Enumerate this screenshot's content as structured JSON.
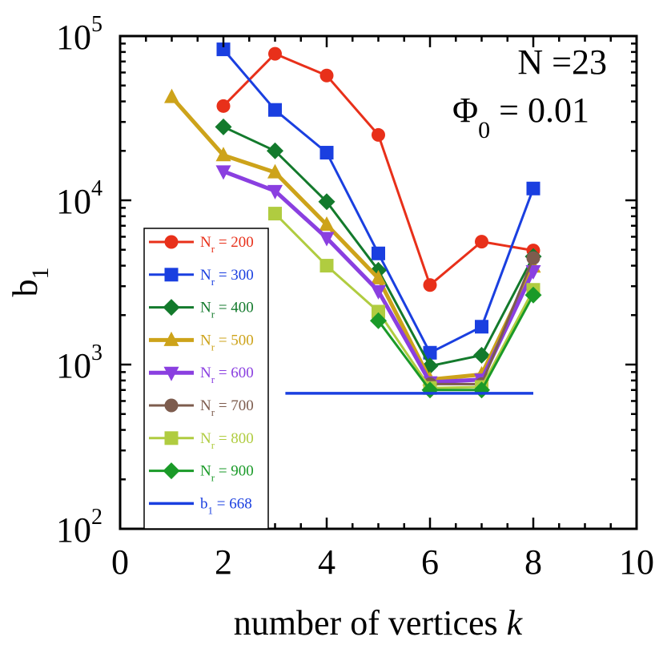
{
  "chart_data": {
    "type": "line",
    "xlabel_main": "number of vertices",
    "xlabel_italic": "k",
    "ylabel_base": "b",
    "ylabel_sub": "1",
    "xlim": [
      0,
      10
    ],
    "ylim": [
      100,
      100000
    ],
    "yscale": "log",
    "xticks": [
      "0",
      "2",
      "4",
      "6",
      "8",
      "10"
    ],
    "yticks": [
      {
        "value": 100,
        "base": "10",
        "exp": "2"
      },
      {
        "value": 1000,
        "base": "10",
        "exp": "3"
      },
      {
        "value": 10000,
        "base": "10",
        "exp": "4"
      },
      {
        "value": 100000,
        "base": "10",
        "exp": "5"
      }
    ],
    "annotations": [
      {
        "id": "N",
        "text": "N =23"
      },
      {
        "id": "phi",
        "base": "Φ",
        "sub": "0",
        "rest": " = 0.01"
      }
    ],
    "legend_placement": "left",
    "series": [
      {
        "name": "N_r = 200",
        "legend_base": "N",
        "legend_sub": "r",
        "legend_rest": " = 200",
        "color": "#e8301a",
        "marker": "circle",
        "width": 3,
        "x": [
          2,
          3,
          4,
          5,
          6,
          7,
          8
        ],
        "y": [
          37500,
          78000,
          57500,
          25000,
          3050,
          5600,
          4950
        ]
      },
      {
        "name": "N_r = 300",
        "legend_base": "N",
        "legend_sub": "r",
        "legend_rest": " = 300",
        "color": "#1a3fe0",
        "marker": "square",
        "width": 3,
        "x": [
          2,
          3,
          4,
          5,
          6,
          7,
          8
        ],
        "y": [
          83000,
          35500,
          19500,
          4750,
          1180,
          1700,
          11800
        ]
      },
      {
        "name": "N_r = 400",
        "legend_base": "N",
        "legend_sub": "r",
        "legend_rest": " = 400",
        "color": "#137a2c",
        "marker": "diamond",
        "width": 3,
        "x": [
          2,
          3,
          4,
          5,
          6,
          7,
          8
        ],
        "y": [
          28000,
          20000,
          9800,
          3750,
          980,
          1140,
          4550
        ]
      },
      {
        "name": "N_r = 500",
        "legend_base": "N",
        "legend_sub": "r",
        "legend_rest": " = 500",
        "color": "#cda31a",
        "marker": "triangle-up",
        "width": 5,
        "x": [
          1,
          2,
          3,
          4,
          5,
          6,
          7,
          8
        ],
        "y": [
          42500,
          18800,
          14800,
          7100,
          3350,
          810,
          870,
          3950
        ]
      },
      {
        "name": "N_r = 600",
        "legend_base": "N",
        "legend_sub": "r",
        "legend_rest": " = 600",
        "color": "#8a3fe0",
        "marker": "triangle-down",
        "width": 5,
        "x": [
          2,
          3,
          4,
          5,
          6,
          7,
          8
        ],
        "y": [
          15000,
          11400,
          5900,
          2800,
          780,
          810,
          3700
        ]
      },
      {
        "name": "N_r = 700",
        "legend_base": "N",
        "legend_sub": "r",
        "legend_rest": " = 700",
        "color": "#7d5c4e",
        "marker": "circle",
        "width": 3,
        "x": [
          6,
          7,
          8
        ],
        "y": [
          760,
          760,
          4450
        ]
      },
      {
        "name": "N_r = 800",
        "legend_base": "N",
        "legend_sub": "r",
        "legend_rest": " = 800",
        "color": "#b0cc40",
        "marker": "square",
        "width": 3,
        "x": [
          3,
          4,
          5,
          6,
          7,
          8
        ],
        "y": [
          8300,
          4000,
          2100,
          720,
          730,
          2850
        ]
      },
      {
        "name": "N_r = 900",
        "legend_base": "N",
        "legend_sub": "r",
        "legend_rest": " = 900",
        "color": "#1a9a28",
        "marker": "diamond",
        "width": 3,
        "x": [
          5,
          6,
          7,
          8
        ],
        "y": [
          1850,
          700,
          700,
          2650
        ]
      },
      {
        "name": "b_1 = 668",
        "legend_base": "b",
        "legend_sub": "1",
        "legend_rest": " = 668",
        "color": "#1a3fe0",
        "marker": "none",
        "width": 3.5,
        "x": [
          3.2,
          8
        ],
        "y": [
          668,
          668
        ]
      }
    ]
  }
}
